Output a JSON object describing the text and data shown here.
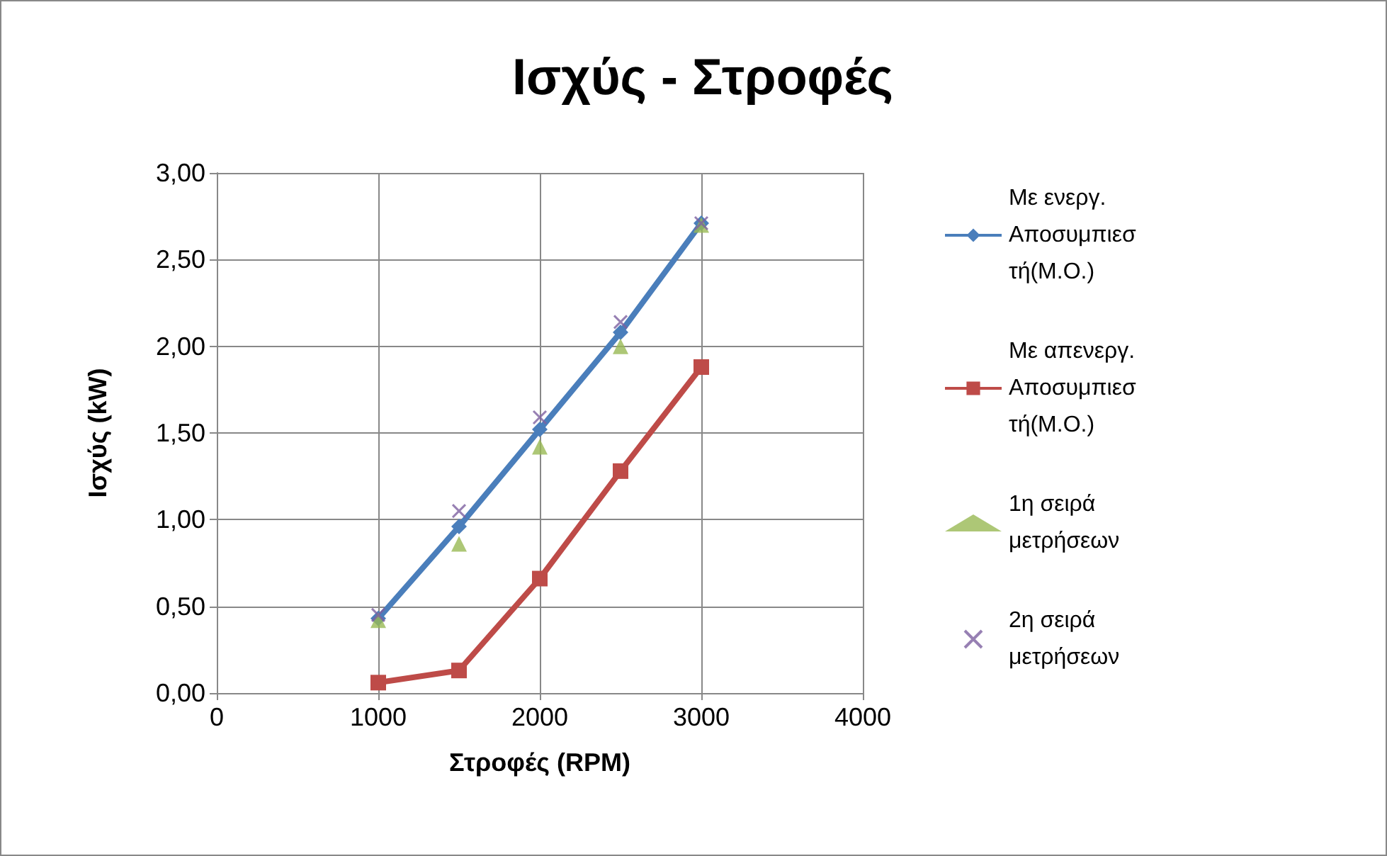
{
  "chart_data": {
    "type": "line",
    "title": "Ισχύς - Στροφές",
    "xlabel": "Στροφές (RPM)",
    "ylabel": "Ισχύς (kW)",
    "x": [
      1000,
      1500,
      2000,
      2500,
      3000
    ],
    "series": [
      {
        "name": "Με ενεργ. Αποσυμπιεστή(Μ.Ο.)",
        "color": "#4a7ebb",
        "marker": "diamond",
        "values": [
          0.43,
          0.96,
          1.52,
          2.08,
          2.71
        ]
      },
      {
        "name": "Με απενεργ. Αποσυμπιεστή(Μ.Ο.)",
        "color": "#be4b48",
        "marker": "square",
        "values": [
          0.06,
          0.13,
          0.66,
          1.28,
          1.88
        ]
      },
      {
        "name": "1η σειρά μετρήσεων",
        "type": "scatter",
        "color": "#98b954",
        "marker": "triangle",
        "values": [
          0.42,
          0.86,
          1.42,
          2.0,
          2.7
        ]
      },
      {
        "name": "2η σειρά μετρήσεων",
        "type": "scatter",
        "color": "#7d60a0",
        "marker": "cross",
        "values": [
          0.45,
          1.05,
          1.59,
          2.14,
          2.71
        ]
      }
    ],
    "xlim": [
      0,
      4000
    ],
    "xticks": [
      0,
      1000,
      2000,
      3000,
      4000
    ],
    "ylim": [
      0,
      3
    ],
    "yticks": [
      {
        "value": 0,
        "label": "0,00"
      },
      {
        "value": 0.5,
        "label": "0,50"
      },
      {
        "value": 1,
        "label": "1,00"
      },
      {
        "value": 1.5,
        "label": "1,50"
      },
      {
        "value": 2,
        "label": "2,00"
      },
      {
        "value": 2.5,
        "label": "2,50"
      },
      {
        "value": 3,
        "label": "3,00"
      }
    ],
    "grid": true,
    "legend": "right",
    "line_style": "solid"
  }
}
